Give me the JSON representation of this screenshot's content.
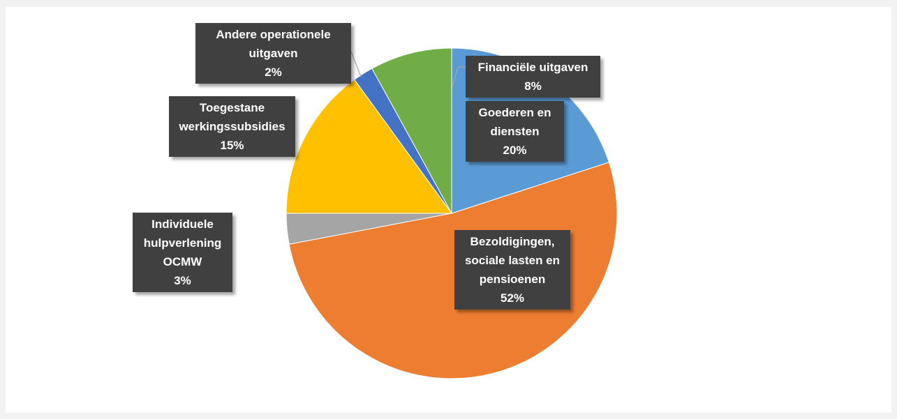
{
  "chart_data": {
    "type": "pie",
    "categories": [
      "Goederen en diensten",
      "Bezoldigingen, sociale lasten en pensioenen",
      "Individuele hulpverlening OCMW",
      "Toegestane werkingssubsidies",
      "Andere operationele uitgaven",
      "Financiële uitgaven"
    ],
    "values": [
      20,
      52,
      3,
      15,
      2,
      8
    ],
    "value_labels": [
      "20%",
      "52%",
      "3%",
      "15%",
      "2%",
      "8%"
    ],
    "colors": [
      "#5b9bd5",
      "#ed7d31",
      "#a5a5a5",
      "#ffc000",
      "#4472c4",
      "#70ad47"
    ]
  }
}
